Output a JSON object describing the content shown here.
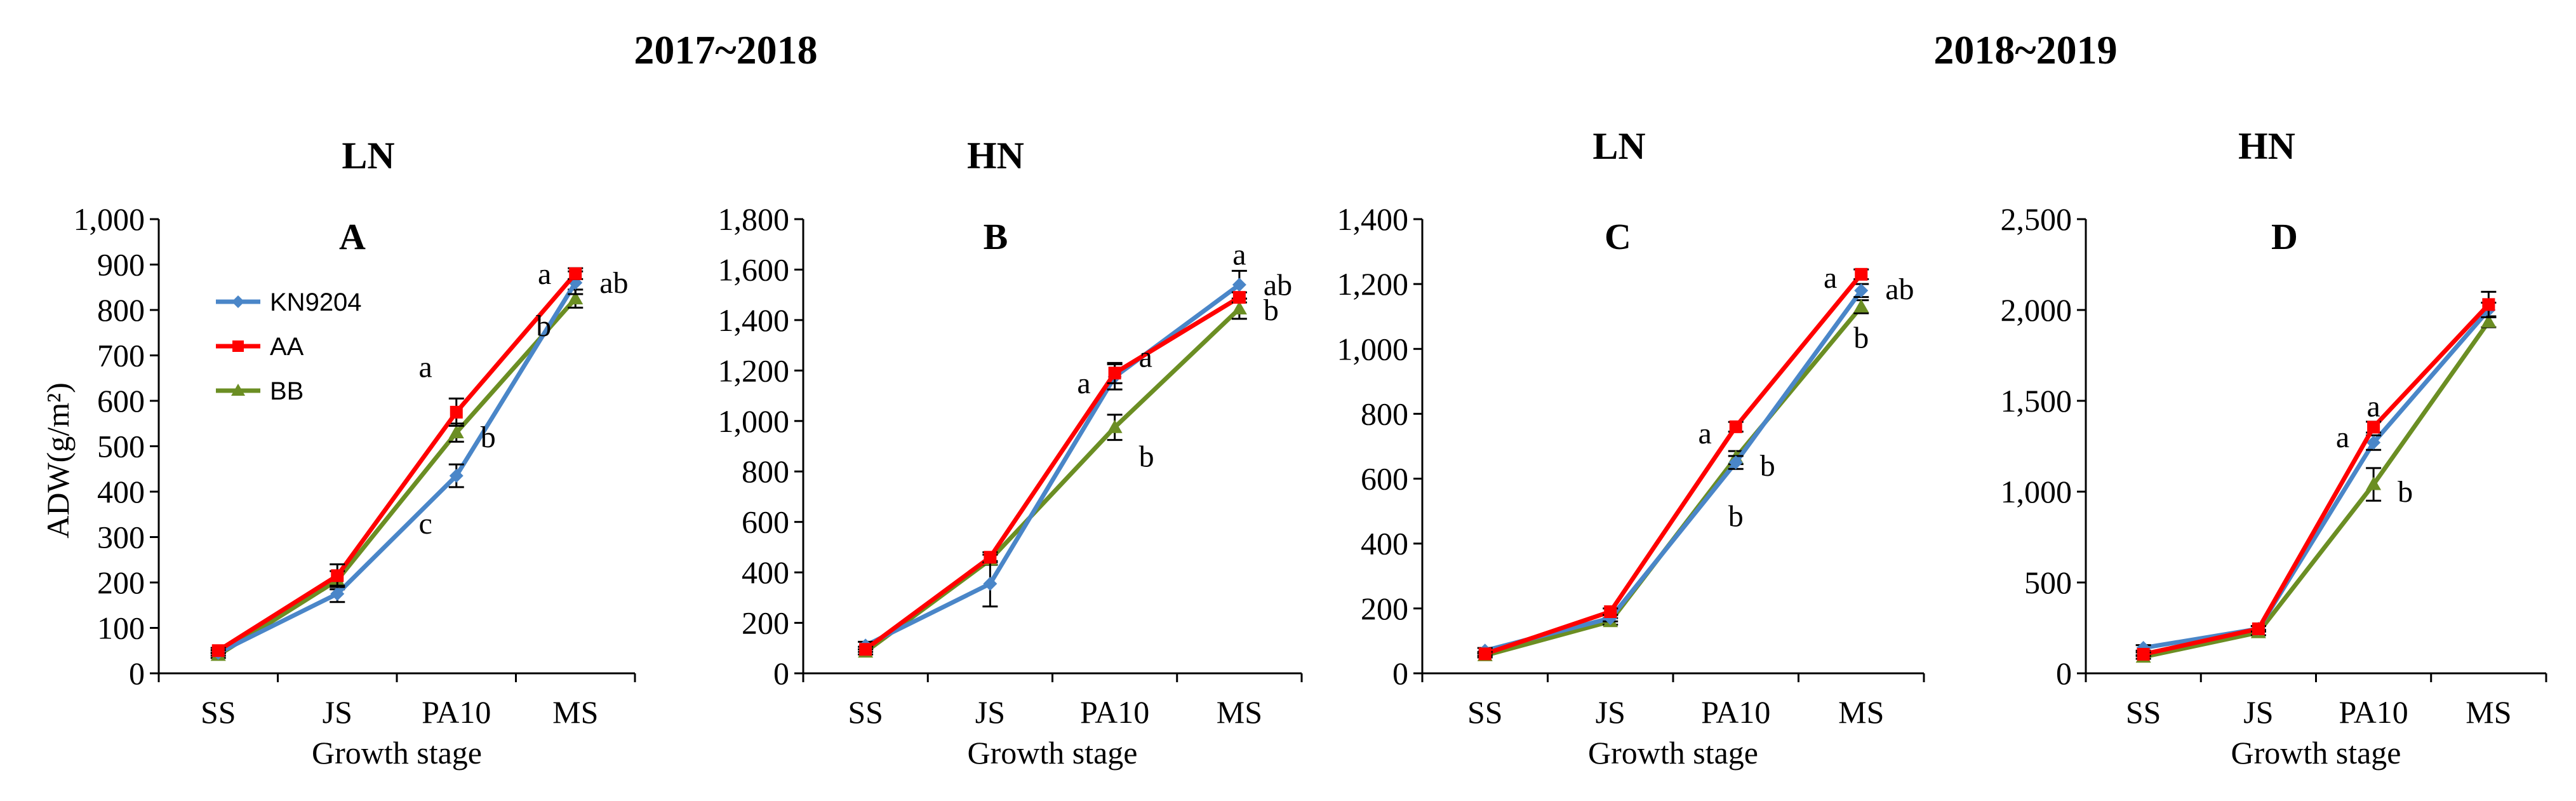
{
  "figure": {
    "group_titles": [
      "2017~2018",
      "2018~2019"
    ],
    "y_axis_label": "ADW(g/m²)",
    "x_axis_label": "Growth stage"
  },
  "legend": [
    {
      "name": "KN9204",
      "color": "#4a86c8"
    },
    {
      "name": "AA",
      "color": "#ff0000"
    },
    {
      "name": "BB",
      "color": "#6b8e23"
    }
  ],
  "chart_data": [
    {
      "type": "line",
      "title": "LN",
      "panel": "A",
      "categories": [
        "SS",
        "JS",
        "PA10",
        "MS"
      ],
      "xlabel": "Growth stage",
      "ylabel": "ADW(g/m²)",
      "ylim": [
        0,
        1000
      ],
      "ytick_step": 100,
      "ytick_labels": [
        "0",
        "100",
        "200",
        "300",
        "400",
        "500",
        "600",
        "700",
        "800",
        "900",
        "1,000"
      ],
      "series": [
        {
          "name": "KN9204",
          "color": "#4a86c8",
          "values": [
            45,
            175,
            435,
            860
          ],
          "errors": [
            6,
            18,
            25,
            25
          ]
        },
        {
          "name": "AA",
          "color": "#ff0000",
          "values": [
            50,
            215,
            575,
            880
          ],
          "errors": [
            6,
            25,
            30,
            12
          ]
        },
        {
          "name": "BB",
          "color": "#6b8e23",
          "values": [
            40,
            205,
            530,
            825
          ],
          "errors": [
            6,
            20,
            20,
            20
          ]
        }
      ],
      "sig_letters": [
        {
          "category": "PA10",
          "value": 675,
          "text": "a",
          "side": "left"
        },
        {
          "category": "PA10",
          "value": 520,
          "text": "b",
          "side": "right"
        },
        {
          "category": "PA10",
          "value": 330,
          "text": "c",
          "side": "left"
        },
        {
          "category": "MS",
          "value": 880,
          "text": "a",
          "side": "left"
        },
        {
          "category": "MS",
          "value": 860,
          "text": "ab",
          "side": "right"
        },
        {
          "category": "MS",
          "value": 765,
          "text": "b",
          "side": "left"
        }
      ],
      "legend": "top-left",
      "grid": false
    },
    {
      "type": "line",
      "title": "HN",
      "panel": "B",
      "categories": [
        "SS",
        "JS",
        "PA10",
        "MS"
      ],
      "xlabel": "Growth stage",
      "ylabel": "",
      "ylim": [
        0,
        1800
      ],
      "ytick_step": 200,
      "ytick_labels": [
        "0",
        "200",
        "400",
        "600",
        "800",
        "1,000",
        "1,200",
        "1,400",
        "1,600",
        "1,800"
      ],
      "series": [
        {
          "name": "KN9204",
          "color": "#4a86c8",
          "values": [
            110,
            355,
            1175,
            1540
          ],
          "errors": [
            15,
            90,
            50,
            55
          ]
        },
        {
          "name": "AA",
          "color": "#ff0000",
          "values": [
            95,
            460,
            1190,
            1490
          ],
          "errors": [
            10,
            20,
            40,
            20
          ]
        },
        {
          "name": "BB",
          "color": "#6b8e23",
          "values": [
            85,
            450,
            975,
            1445
          ],
          "errors": [
            10,
            20,
            50,
            40
          ]
        }
      ],
      "sig_letters": [
        {
          "category": "PA10",
          "value": 1150,
          "text": "a",
          "side": "left"
        },
        {
          "category": "PA10",
          "value": 1255,
          "text": "a",
          "side": "right"
        },
        {
          "category": "PA10",
          "value": 860,
          "text": "b",
          "side": "right"
        },
        {
          "category": "MS",
          "value": 1660,
          "text": "a",
          "side": "center"
        },
        {
          "category": "MS",
          "value": 1540,
          "text": "ab",
          "side": "right"
        },
        {
          "category": "MS",
          "value": 1440,
          "text": "b",
          "side": "right"
        }
      ],
      "legend": "none",
      "grid": false
    },
    {
      "type": "line",
      "title": "LN",
      "panel": "C",
      "categories": [
        "SS",
        "JS",
        "PA10",
        "MS"
      ],
      "xlabel": "Growth stage",
      "ylabel": "",
      "ylim": [
        0,
        1400
      ],
      "ytick_step": 200,
      "ytick_labels": [
        "0",
        "200",
        "400",
        "600",
        "800",
        "1,000",
        "1,200",
        "1,400"
      ],
      "series": [
        {
          "name": "KN9204",
          "color": "#4a86c8",
          "values": [
            70,
            170,
            650,
            1180
          ],
          "errors": [
            8,
            10,
            20,
            20
          ]
        },
        {
          "name": "AA",
          "color": "#ff0000",
          "values": [
            60,
            190,
            760,
            1230
          ],
          "errors": [
            6,
            10,
            15,
            15
          ]
        },
        {
          "name": "BB",
          "color": "#6b8e23",
          "values": [
            55,
            160,
            665,
            1130
          ],
          "errors": [
            6,
            10,
            20,
            20
          ]
        }
      ],
      "sig_letters": [
        {
          "category": "PA10",
          "value": 740,
          "text": "a",
          "side": "left"
        },
        {
          "category": "PA10",
          "value": 640,
          "text": "b",
          "side": "right"
        },
        {
          "category": "PA10",
          "value": 485,
          "text": "b",
          "side": "center"
        },
        {
          "category": "MS",
          "value": 1220,
          "text": "a",
          "side": "left"
        },
        {
          "category": "MS",
          "value": 1185,
          "text": "ab",
          "side": "right"
        },
        {
          "category": "MS",
          "value": 1035,
          "text": "b",
          "side": "center"
        }
      ],
      "legend": "none",
      "grid": false
    },
    {
      "type": "line",
      "title": "HN",
      "panel": "D",
      "categories": [
        "SS",
        "JS",
        "PA10",
        "MS"
      ],
      "xlabel": "Growth stage",
      "ylabel": "",
      "ylim": [
        0,
        2500
      ],
      "ytick_step": 500,
      "ytick_labels": [
        "0",
        "500",
        "1,000",
        "1,500",
        "2,000",
        "2,500"
      ],
      "series": [
        {
          "name": "KN9204",
          "color": "#4a86c8",
          "values": [
            140,
            245,
            1270,
            2000
          ],
          "errors": [
            15,
            15,
            40,
            40
          ]
        },
        {
          "name": "AA",
          "color": "#ff0000",
          "values": [
            105,
            245,
            1355,
            2030
          ],
          "errors": [
            10,
            15,
            30,
            70
          ]
        },
        {
          "name": "BB",
          "color": "#6b8e23",
          "values": [
            90,
            225,
            1040,
            1935
          ],
          "errors": [
            10,
            15,
            90,
            30
          ]
        }
      ],
      "sig_letters": [
        {
          "category": "PA10",
          "value": 1300,
          "text": "a",
          "side": "left"
        },
        {
          "category": "PA10",
          "value": 1470,
          "text": "a",
          "side": "center"
        },
        {
          "category": "PA10",
          "value": 1000,
          "text": "b",
          "side": "right"
        }
      ],
      "legend": "none",
      "grid": false
    }
  ]
}
